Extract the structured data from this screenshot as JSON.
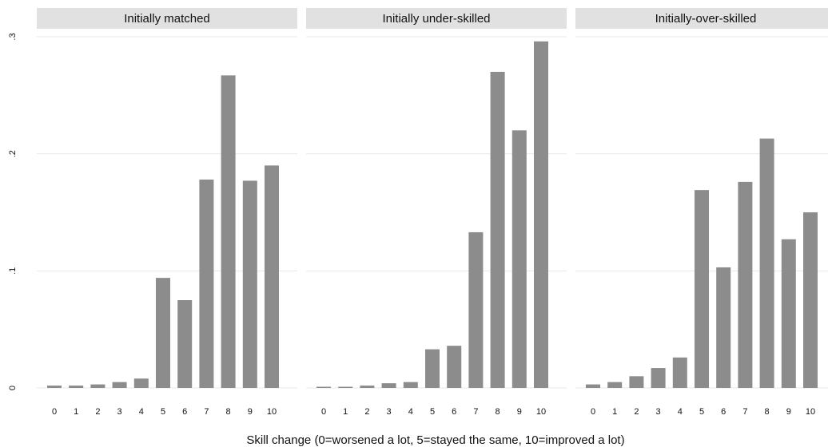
{
  "chart_data": {
    "type": "bar",
    "xlabel": "Skill change (0=worsened a lot, 5=stayed the same, 10=improved a lot)",
    "ylabel": "",
    "ylim": [
      0,
      0.3
    ],
    "yticks": [
      {
        "value": 0,
        "label": "0"
      },
      {
        "value": 0.1,
        "label": ".1"
      },
      {
        "value": 0.2,
        "label": ".2"
      },
      {
        "value": 0.3,
        "label": ".3"
      }
    ],
    "categories": [
      "0",
      "1",
      "2",
      "3",
      "4",
      "5",
      "6",
      "7",
      "8",
      "9",
      "10"
    ],
    "grid": true,
    "bar_color": "#8c8c8c",
    "panels": [
      {
        "title": "Initially matched",
        "values": [
          0.002,
          0.002,
          0.003,
          0.005,
          0.008,
          0.094,
          0.075,
          0.178,
          0.267,
          0.177,
          0.19
        ]
      },
      {
        "title": "Initially under-skilled",
        "values": [
          0.001,
          0.001,
          0.002,
          0.004,
          0.005,
          0.033,
          0.036,
          0.133,
          0.27,
          0.22,
          0.296
        ]
      },
      {
        "title": "Initially-over-skilled",
        "values": [
          0.003,
          0.005,
          0.01,
          0.017,
          0.026,
          0.169,
          0.103,
          0.176,
          0.213,
          0.127,
          0.15
        ]
      }
    ]
  }
}
